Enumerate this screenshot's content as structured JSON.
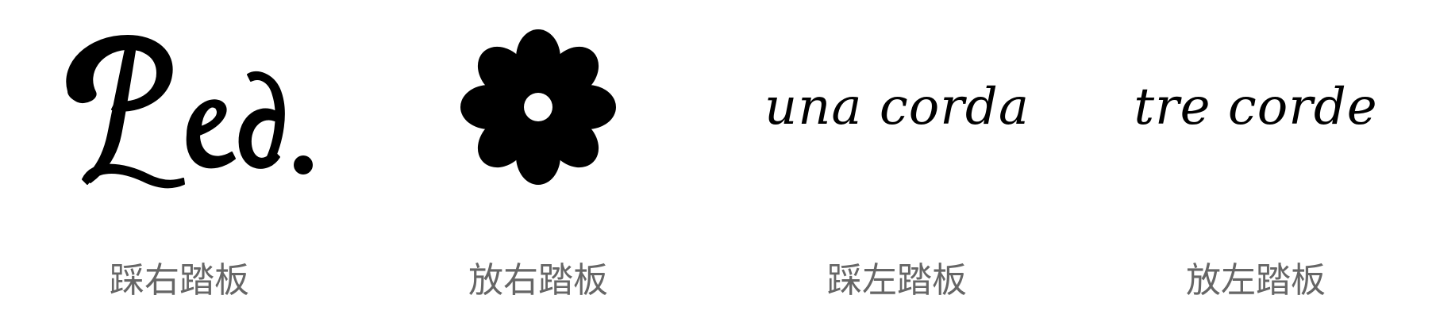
{
  "items": [
    {
      "symbol_text": "Ped.",
      "symbol_icon": "ped-sustain-pedal-icon",
      "caption": "踩右踏板"
    },
    {
      "symbol_icon": "pedal-release-asterisk-icon",
      "caption": "放右踏板"
    },
    {
      "symbol_text": "una corda",
      "caption": "踩左踏板"
    },
    {
      "symbol_text": "tre corde",
      "caption": "放左踏板"
    }
  ],
  "colors": {
    "symbol": "#000000",
    "caption": "#666666",
    "background": "#ffffff"
  }
}
